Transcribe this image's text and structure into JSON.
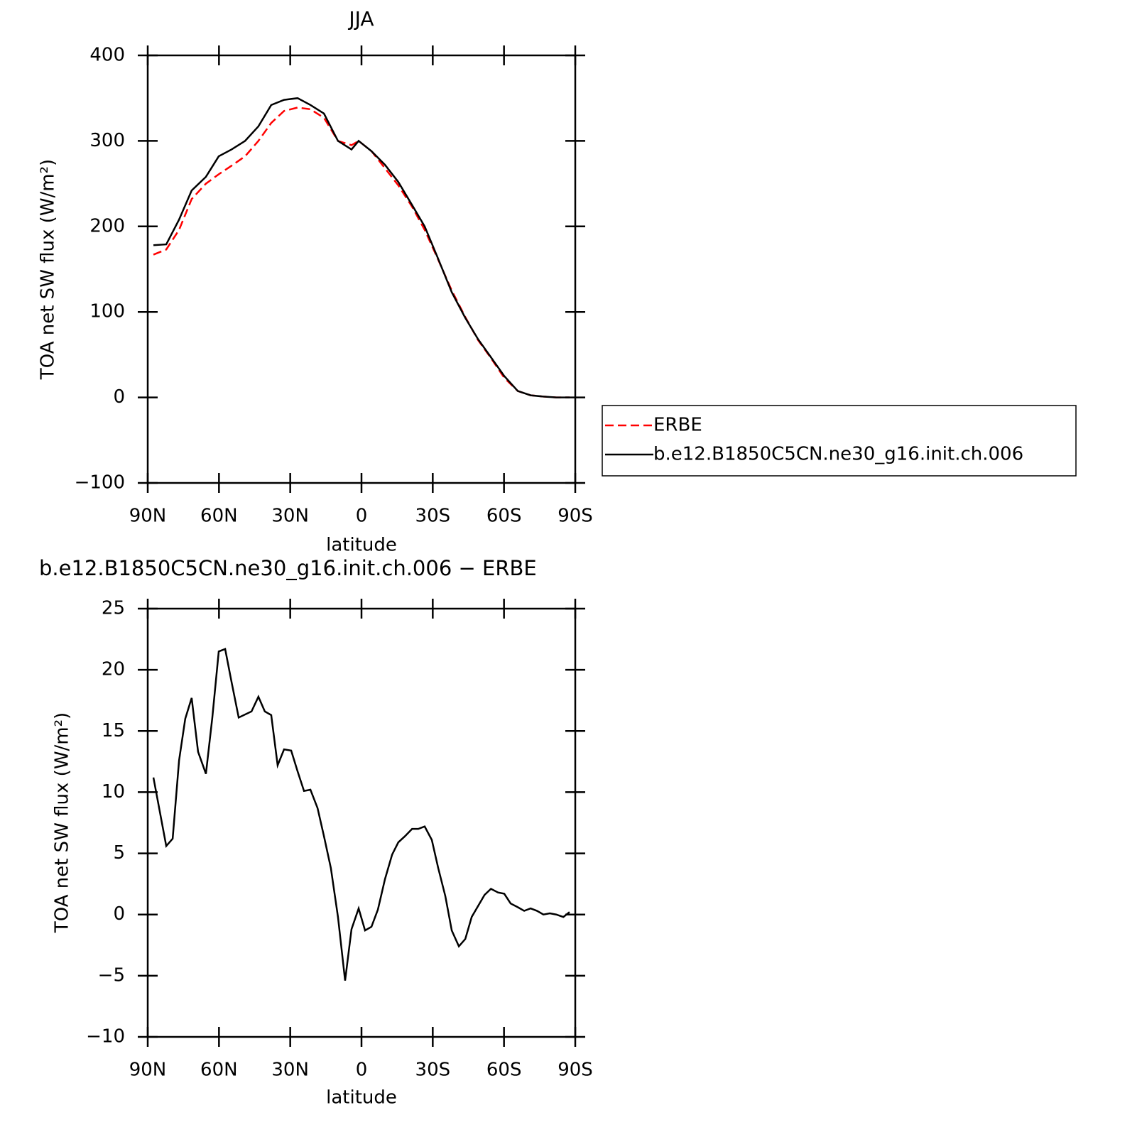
{
  "chart_data": [
    {
      "type": "line",
      "title": "JJA",
      "ylabel": "TOA net SW flux (W/m²)",
      "xlabel": "latitude",
      "xlim": [
        90,
        -90
      ],
      "xticks": [
        {
          "value": 90,
          "label": "90N"
        },
        {
          "value": 60,
          "label": "60N"
        },
        {
          "value": 30,
          "label": "30N"
        },
        0,
        {
          "value": -30,
          "label": "30S"
        },
        {
          "value": -60,
          "label": "60S"
        },
        {
          "value": -90,
          "label": "90S"
        }
      ],
      "ylim": [
        -100,
        400
      ],
      "yticks": [
        {
          "value": -100,
          "label": "−100"
        },
        0,
        100,
        200,
        300,
        400
      ],
      "x": [
        87.6,
        82.2,
        76.8,
        71.5,
        65.5,
        60.1,
        54.7,
        49,
        43.4,
        38,
        32.6,
        26.9,
        21.5,
        15.8,
        9.9,
        4.2,
        1.2,
        -4.2,
        -9.9,
        -15.5,
        -21.3,
        -26.6,
        -32.3,
        -38,
        -43.7,
        -49.1,
        -54.5,
        -60.1,
        -65.8,
        -71.2,
        -76.6,
        -82,
        -87.6
      ],
      "series": [
        {
          "name": "ERBE",
          "color": "#ff0000",
          "style": "dashed",
          "values": [
            167,
            173,
            196,
            232,
            250,
            261,
            271,
            282,
            300,
            321,
            335,
            339,
            337,
            327,
            300,
            295,
            300,
            288,
            268,
            248,
            223,
            196,
            161,
            125,
            94,
            67,
            46,
            23,
            7.5,
            2.5,
            1,
            0,
            0
          ]
        },
        {
          "name": "b.e12.B1850C5CN.ne30_g16.init.ch.006",
          "color": "#000000",
          "style": "solid",
          "values": [
            178,
            179,
            208,
            242,
            258,
            282,
            290,
            300,
            317,
            342,
            348,
            350,
            342,
            332,
            300,
            290,
            300,
            288,
            272,
            252,
            225,
            200,
            162,
            123,
            93,
            68,
            47,
            25,
            7.5,
            2.5,
            1,
            0,
            0
          ]
        }
      ]
    },
    {
      "type": "line",
      "title": "b.e12.B1850C5CN.ne30_g16.init.ch.006 − ERBE",
      "ylabel": "TOA net SW flux (W/m²)",
      "xlabel": "latitude",
      "xlim": [
        90,
        -90
      ],
      "xticks": [
        {
          "value": 90,
          "label": "90N"
        },
        {
          "value": 60,
          "label": "60N"
        },
        {
          "value": 30,
          "label": "30N"
        },
        0,
        {
          "value": -30,
          "label": "30S"
        },
        {
          "value": -60,
          "label": "60S"
        },
        {
          "value": -90,
          "label": "90S"
        }
      ],
      "ylim": [
        -10,
        25
      ],
      "yticks": [
        {
          "value": -10,
          "label": "−10"
        },
        {
          "value": -5,
          "label": "−5"
        },
        0,
        5,
        10,
        15,
        20,
        25
      ],
      "color": "#000000",
      "x": [
        87.6,
        82.2,
        79.5,
        76.8,
        74.2,
        71.5,
        68.8,
        65.5,
        62.8,
        60.1,
        57.4,
        54.7,
        51.7,
        46.3,
        43.4,
        40.7,
        38,
        35.3,
        32.6,
        29.6,
        26.9,
        24.2,
        21.5,
        18.5,
        15.8,
        12.9,
        9.9,
        6.9,
        4.2,
        1.2,
        -1.5,
        -4.2,
        -6.9,
        -9.9,
        -12.9,
        -15.5,
        -18.3,
        -21.3,
        -23.9,
        -26.6,
        -29.6,
        -32.3,
        -35.3,
        -38,
        -41,
        -43.7,
        -46.4,
        -49.1,
        -51.8,
        -54.5,
        -57.5,
        -60.1,
        -62.8,
        -65.8,
        -68.5,
        -71.2,
        -73.9,
        -76.6,
        -79.3,
        -82,
        -85,
        -87.6
      ],
      "values": [
        11.2,
        5.6,
        6.2,
        12.6,
        16.0,
        17.7,
        13.3,
        11.5,
        16.1,
        21.5,
        21.7,
        19.0,
        16.1,
        16.6,
        17.8,
        16.6,
        16.3,
        12.2,
        13.5,
        13.4,
        11.7,
        10.1,
        10.2,
        8.7,
        6.4,
        3.8,
        -0.2,
        -5.4,
        -1.2,
        0.5,
        -1.3,
        -1.0,
        0.4,
        2.9,
        4.9,
        5.9,
        6.4,
        7.0,
        7.0,
        7.2,
        6.1,
        3.8,
        1.5,
        -1.3,
        -2.6,
        -2.0,
        -0.2,
        0.7,
        1.6,
        2.1,
        1.8,
        1.7,
        0.9,
        0.6,
        0.3,
        0.5,
        0.3,
        0.0,
        0.1,
        0.0,
        -0.2,
        0.2
      ]
    }
  ]
}
